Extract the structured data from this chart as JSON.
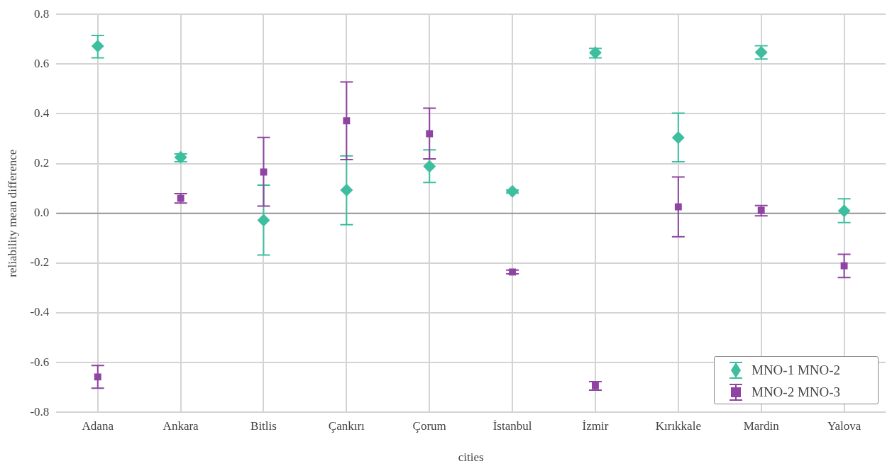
{
  "chart_data": {
    "type": "scatter",
    "xlabel": "cities",
    "ylabel": "reliability mean difference",
    "categories": [
      "Adana",
      "Ankara",
      "Bitlis",
      "Çankırı",
      "Çorum",
      "İstanbul",
      "İzmir",
      "Kırıkkale",
      "Mardin",
      "Yalova"
    ],
    "series": [
      {
        "name": "MNO-1 MNO-2",
        "color": "#3dbf9f",
        "marker": "diamond",
        "values": [
          0.672,
          0.225,
          -0.028,
          0.093,
          0.189,
          0.088,
          0.646,
          0.304,
          0.647,
          0.01
        ],
        "errors": [
          [
            0.625,
            0.715
          ],
          [
            0.207,
            0.239
          ],
          [
            -0.168,
            0.113
          ],
          [
            -0.046,
            0.231
          ],
          [
            0.124,
            0.255
          ],
          [
            0.081,
            0.094
          ],
          [
            0.625,
            0.663
          ],
          [
            0.207,
            0.403
          ],
          [
            0.62,
            0.674
          ],
          [
            -0.037,
            0.058
          ]
        ]
      },
      {
        "name": "MNO-2 MNO-3",
        "color": "#8e44a0",
        "marker": "square",
        "values": [
          -0.658,
          0.06,
          0.166,
          0.372,
          0.32,
          -0.236,
          -0.693,
          0.026,
          0.012,
          -0.211
        ],
        "errors": [
          [
            -0.703,
            -0.612
          ],
          [
            0.041,
            0.079
          ],
          [
            0.029,
            0.305
          ],
          [
            0.216,
            0.528
          ],
          [
            0.219,
            0.423
          ],
          [
            -0.243,
            -0.228
          ],
          [
            -0.711,
            -0.677
          ],
          [
            -0.094,
            0.146
          ],
          [
            -0.01,
            0.031
          ],
          [
            -0.258,
            -0.165
          ]
        ]
      }
    ],
    "ylim": [
      -0.8,
      0.8
    ],
    "yticks": [
      {
        "value": -0.8,
        "label": "-0.8"
      },
      {
        "value": -0.6,
        "label": "-0.6"
      },
      {
        "value": -0.4,
        "label": "-0.4"
      },
      {
        "value": -0.2,
        "label": "-0.2"
      },
      {
        "value": 0,
        "label": "0.0"
      },
      {
        "value": 0.2,
        "label": "0.2"
      },
      {
        "value": 0.4,
        "label": "0.4"
      },
      {
        "value": 0.6,
        "label": "0.6"
      },
      {
        "value": 0.8,
        "label": "0.8"
      }
    ],
    "grid": true,
    "legend": "bottom right",
    "ref_lines": [
      {
        "axis": "y",
        "value": 0,
        "color": "#999999"
      }
    ]
  }
}
